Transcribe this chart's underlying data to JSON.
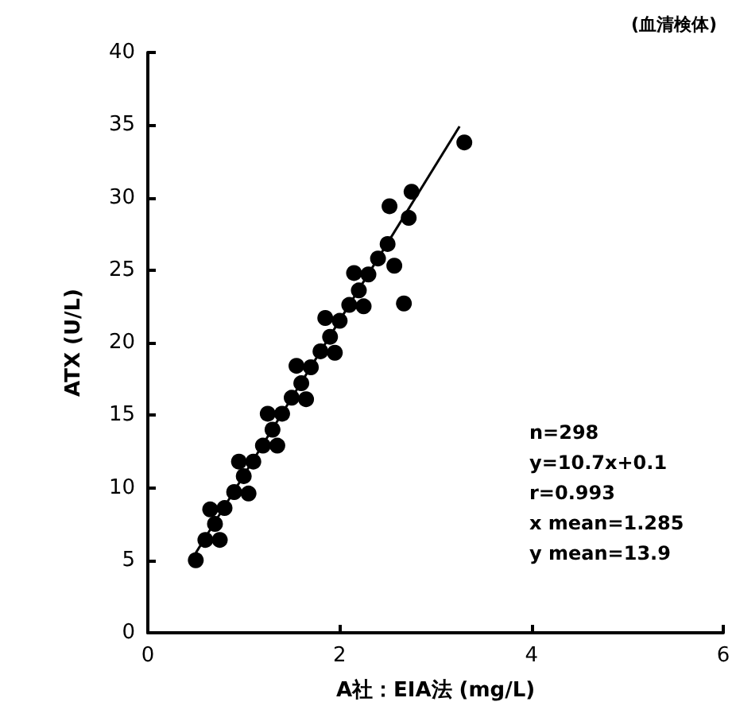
{
  "chart_data": {
    "type": "scatter",
    "xlabel": "A社：EIA法 (mg/L)",
    "ylabel": "ATX (U/L)",
    "xlim": [
      0,
      6
    ],
    "xticks": [
      0,
      2,
      4,
      6
    ],
    "ylim": [
      0,
      40
    ],
    "yticks": [
      0,
      5,
      10,
      15,
      20,
      25,
      30,
      35,
      40
    ],
    "grid": false,
    "marker": "circle",
    "annotations": [
      "(血清検体)",
      "n=298",
      "y=10.7x+0.1",
      "r=0.993",
      "x mean=1.285",
      "y mean=13.9"
    ],
    "series": [
      {
        "color": "#000000",
        "x": [
          0.5,
          0.6,
          0.7,
          0.8,
          0.9,
          1.0,
          1.1,
          1.2,
          1.3,
          1.4,
          1.5,
          1.6,
          1.7,
          1.8,
          1.9,
          2.0,
          2.1,
          2.2,
          2.3,
          2.4,
          2.5,
          2.52,
          2.57,
          2.67,
          2.72,
          2.75,
          3.3,
          0.75,
          1.05,
          1.35,
          1.65,
          1.95,
          2.25,
          0.65,
          0.95,
          1.25,
          1.55,
          1.85,
          2.15
        ],
        "values": [
          5.0,
          6.4,
          7.5,
          8.6,
          9.7,
          10.8,
          11.8,
          12.9,
          14.0,
          15.1,
          16.2,
          17.2,
          18.3,
          19.4,
          20.4,
          21.5,
          22.6,
          23.6,
          24.7,
          25.8,
          26.8,
          29.4,
          25.3,
          22.7,
          28.6,
          30.4,
          33.8,
          6.4,
          9.6,
          12.9,
          16.1,
          19.3,
          22.5,
          8.5,
          11.8,
          15.1,
          18.4,
          21.7,
          24.8
        ]
      },
      {
        "type": "line",
        "marker": "none",
        "color": "#000000",
        "x": [
          0.5,
          3.25
        ],
        "values": [
          5.5,
          34.9
        ]
      }
    ]
  }
}
